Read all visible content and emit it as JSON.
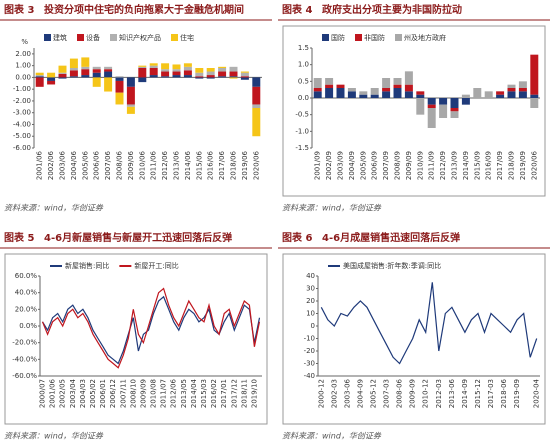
{
  "chart_data": [
    {
      "type": "bar",
      "figure": "图表 3",
      "title": "投资分项中住宅的负向拖累大于金融危机期间",
      "source": "资料来源：wind，华创证券",
      "y_label": "%",
      "categories": [
        "2001/06",
        "2002/06",
        "2003/06",
        "2004/06",
        "2005/06",
        "2006/06",
        "2007/06",
        "2008/06",
        "2009/06",
        "2010/06",
        "2011/06",
        "2012/06",
        "2013/06",
        "2014/06",
        "2015/06",
        "2016/06",
        "2017/06",
        "2018/06",
        "2019/06",
        "2020/06"
      ],
      "series": [
        {
          "name": "建筑",
          "color": "#1f3a7a",
          "values": [
            0.1,
            -0.3,
            -0.1,
            0.1,
            0.2,
            0.4,
            0.5,
            -0.3,
            -0.8,
            -0.4,
            0.2,
            0.1,
            0.2,
            0.2,
            -0.1,
            -0.1,
            0.1,
            0.1,
            -0.2,
            -0.8
          ]
        },
        {
          "name": "设备",
          "color": "#c0161e",
          "values": [
            -0.8,
            -0.3,
            0.3,
            0.5,
            0.5,
            0.3,
            0.2,
            -1.0,
            -1.5,
            0.8,
            0.6,
            0.4,
            0.3,
            0.4,
            0.1,
            0.2,
            0.4,
            0.4,
            0.1,
            -1.5
          ]
        },
        {
          "name": "知识产权产品",
          "color": "#b0b0b0",
          "values": [
            0.1,
            0.0,
            0.1,
            0.2,
            0.2,
            0.2,
            0.2,
            0.1,
            -0.2,
            0.1,
            0.2,
            0.2,
            0.2,
            0.3,
            0.3,
            0.3,
            0.3,
            0.4,
            0.3,
            -0.3
          ]
        },
        {
          "name": "住宅",
          "color": "#f5c518",
          "values": [
            0.2,
            0.4,
            0.6,
            0.8,
            0.8,
            -0.8,
            -1.2,
            -1.0,
            -0.6,
            0.1,
            0.2,
            0.5,
            0.4,
            0.3,
            0.4,
            0.3,
            0.1,
            -0.1,
            0.1,
            -2.4
          ]
        }
      ],
      "ylim": [
        -6,
        2.5
      ],
      "yticks": [
        {
          "value": -6,
          "label": "-6.00"
        },
        {
          "value": -5,
          "label": "-5.00"
        },
        {
          "value": -4,
          "label": "-4.00"
        },
        {
          "value": -3,
          "label": "-3.00"
        },
        {
          "value": -2,
          "label": "-2.00"
        },
        {
          "value": -1,
          "label": "-1.00"
        },
        {
          "value": 0,
          "label": "0.00"
        },
        {
          "value": 1,
          "label": "1.00"
        },
        {
          "value": 2,
          "label": "2.00"
        }
      ],
      "grid": false
    },
    {
      "type": "bar",
      "figure": "图表 4",
      "title": "政府支出分项主要为非国防拉动",
      "source": "资料来源：wind，华创证券",
      "categories": [
        "2001/09",
        "2002/09",
        "2003/09",
        "2004/09",
        "2005/09",
        "2006/09",
        "2007/09",
        "2008/09",
        "2009/09",
        "2010/09",
        "2011/09",
        "2012/09",
        "2013/09",
        "2014/09",
        "2015/09",
        "2016/09",
        "2017/09",
        "2018/09",
        "2019/09",
        "2020/06"
      ],
      "series": [
        {
          "name": "国防",
          "color": "#1f3a7a",
          "values": [
            0.2,
            0.3,
            0.3,
            0.2,
            0.1,
            0.1,
            0.2,
            0.3,
            0.2,
            0.1,
            -0.2,
            -0.2,
            -0.3,
            -0.2,
            0.0,
            0.0,
            0.1,
            0.2,
            0.2,
            0.1
          ]
        },
        {
          "name": "非国防",
          "color": "#c0161e",
          "values": [
            0.1,
            0.1,
            0.1,
            0.0,
            0.0,
            0.0,
            0.1,
            0.1,
            0.2,
            0.1,
            -0.1,
            0.0,
            -0.1,
            0.0,
            0.0,
            0.0,
            0.1,
            0.1,
            0.1,
            1.2
          ]
        },
        {
          "name": "州及地方政府",
          "color": "#a8a8a8",
          "values": [
            0.3,
            0.2,
            0.0,
            0.1,
            0.1,
            0.2,
            0.3,
            0.2,
            0.4,
            -0.5,
            -0.6,
            -0.4,
            -0.2,
            0.1,
            0.3,
            0.2,
            0.0,
            0.1,
            0.2,
            -0.3
          ]
        }
      ],
      "ylim": [
        -1.5,
        1.5
      ],
      "yticks": [
        -1.5,
        {
          "value": -1,
          "label": "-1.0"
        },
        -0.5,
        {
          "value": 0,
          "label": "0.0"
        },
        0.5,
        {
          "value": 1,
          "label": "1.0"
        },
        1.5
      ],
      "grid": false
    },
    {
      "type": "line",
      "figure": "图表 5",
      "title": "4-6月新屋销售与新屋开工迅速回落后反弹",
      "source": "资料来源：wind，华创证券",
      "categories": [
        "2000/07",
        null,
        "2001/06",
        null,
        "2002/05",
        null,
        "2003/04",
        null,
        "2004/03",
        null,
        "2005/02",
        null,
        "2006/01",
        null,
        "2006/12",
        null,
        "2007/11",
        null,
        "2008/10",
        null,
        "2009/09",
        null,
        "2010/08",
        null,
        "2011/07",
        null,
        "2012/06",
        null,
        "2013/05",
        null,
        "2014/04",
        null,
        "2015/03",
        null,
        "2016/02",
        null,
        "2017/01",
        null,
        "2017/12",
        null,
        "2018/11",
        null,
        "2019/10",
        null
      ],
      "series": [
        {
          "name": "新屋销售:同比",
          "color": "#1f3a7a",
          "values": [
            5,
            -5,
            10,
            15,
            5,
            20,
            25,
            15,
            20,
            10,
            -5,
            -15,
            -25,
            -35,
            -40,
            -45,
            -30,
            -10,
            10,
            -30,
            -10,
            -5,
            15,
            30,
            35,
            20,
            5,
            -5,
            10,
            20,
            15,
            5,
            10,
            20,
            -5,
            -10,
            5,
            15,
            -5,
            10,
            25,
            20,
            -20,
            10
          ]
        },
        {
          "name": "新屋开工:同比",
          "color": "#c0161e",
          "values": [
            5,
            -10,
            5,
            10,
            0,
            15,
            20,
            10,
            15,
            5,
            -10,
            -20,
            -30,
            -40,
            -45,
            -50,
            -35,
            -15,
            20,
            -10,
            -20,
            0,
            20,
            40,
            45,
            25,
            10,
            0,
            15,
            30,
            20,
            10,
            5,
            25,
            0,
            -10,
            15,
            20,
            0,
            15,
            30,
            25,
            -25,
            5
          ]
        }
      ],
      "ylim": [
        -60,
        60
      ],
      "yticks": [
        {
          "value": -60,
          "label": "-60.0%"
        },
        {
          "value": -40,
          "label": "-40.0%"
        },
        {
          "value": -20,
          "label": "-20.0%"
        },
        {
          "value": 0,
          "label": "0.0%"
        },
        {
          "value": 20,
          "label": "20.0%"
        },
        {
          "value": 40,
          "label": "40.0%"
        },
        {
          "value": 60,
          "label": "60.0%"
        }
      ],
      "grid": false
    },
    {
      "type": "line",
      "figure": "图表 6",
      "title": "4-6月成屋销售迅速回落后反弹",
      "source": "资料来源：wind，华创证券",
      "categories": [
        "2000-12",
        null,
        "2002-03",
        null,
        "2003-06",
        null,
        "2004-09",
        null,
        "2005-12",
        null,
        "2007-03",
        null,
        "2008-06",
        null,
        "2009-09",
        null,
        "2010-12",
        null,
        "2012-03",
        null,
        "2013-06",
        null,
        "2014-09",
        null,
        "2015-12",
        null,
        "2017-03",
        null,
        "2018-06",
        null,
        "2019-09",
        null,
        null,
        "2020-04"
      ],
      "series": [
        {
          "name": "美国成屋销售:折年数:季调:同比",
          "color": "#1f3a7a",
          "values": [
            15,
            5,
            0,
            10,
            8,
            15,
            20,
            15,
            5,
            -5,
            -15,
            -25,
            -30,
            -20,
            -10,
            5,
            -5,
            35,
            -20,
            10,
            15,
            5,
            -5,
            5,
            10,
            -5,
            10,
            5,
            0,
            -5,
            5,
            10,
            -25,
            -10
          ]
        }
      ],
      "ylim": [
        -40,
        40
      ],
      "yticks": [
        -40,
        -30,
        -20,
        -10,
        0,
        10,
        20,
        30,
        40
      ],
      "grid": false
    }
  ]
}
